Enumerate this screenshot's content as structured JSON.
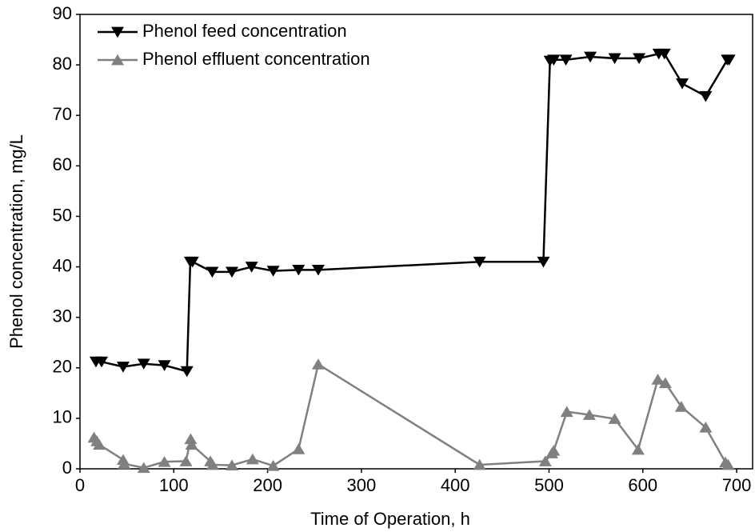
{
  "chart_data": {
    "type": "line",
    "x_label": "Time of Operation, h",
    "y_label": "Phenol concentration, mg/L",
    "xlim": [
      0,
      717
    ],
    "xticks": [
      0,
      100,
      200,
      300,
      400,
      500,
      600,
      700
    ],
    "ylim": [
      0,
      90
    ],
    "yticks": [
      0,
      10,
      20,
      30,
      40,
      50,
      60,
      70,
      80,
      90
    ],
    "legend": "upper left",
    "series": [
      {
        "name": "Phenol feed concentration",
        "color": "#000000",
        "marker": "v",
        "x": [
          17,
          23,
          46,
          68,
          90,
          114,
          117.6,
          120,
          141,
          162,
          183,
          206,
          233,
          254,
          426,
          494,
          501,
          505,
          518,
          544,
          570,
          596,
          617,
          623,
          642,
          667,
          690,
          692
        ],
        "values": [
          21.2,
          21.2,
          20.2,
          20.8,
          20.5,
          19.3,
          41,
          41,
          39,
          39,
          40,
          39.2,
          39.4,
          39.4,
          41,
          41,
          80.8,
          81,
          81,
          81.6,
          81.3,
          81.3,
          82.2,
          82.2,
          76.3,
          73.8,
          81,
          81
        ]
      },
      {
        "name": "Phenol effluent concentration",
        "color": "#808080",
        "marker": "^",
        "x": [
          15,
          18,
          20.5,
          46,
          47,
          68,
          90,
          113,
          118,
          119,
          139,
          141.5,
          162,
          184,
          206,
          233,
          254,
          426,
          496,
          503,
          505,
          519,
          543,
          570,
          595,
          616,
          624,
          641,
          667,
          688,
          691
        ],
        "values": [
          6.2,
          5.5,
          4.8,
          1.8,
          1.0,
          0.2,
          1.4,
          1.5,
          5.9,
          4.8,
          1.5,
          0.8,
          0.7,
          1.9,
          0.6,
          3.9,
          20.7,
          0.8,
          1.5,
          3.1,
          3.6,
          11.3,
          10.7,
          9.9,
          3.8,
          17.7,
          17.0,
          12.3,
          8.2,
          1.3,
          0.8
        ]
      }
    ]
  }
}
